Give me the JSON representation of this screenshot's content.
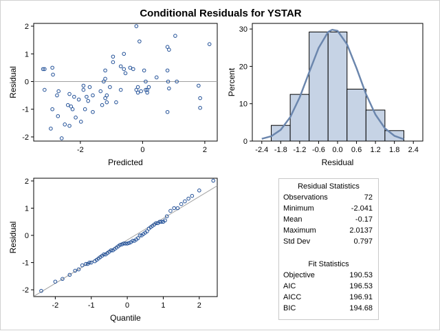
{
  "title": "Conditional Residuals for YSTAR",
  "colors": {
    "marker": "#1f4e96",
    "bar_fill": "#c6d3e5",
    "curve": "#6b86ad",
    "refline": "#a0a0a0",
    "axis": "#000000"
  },
  "chart_data": [
    {
      "type": "scatter",
      "panel": "residual-vs-predicted",
      "xlabel": "Predicted",
      "ylabel": "Residual",
      "xlim": [
        -3.5,
        2.4
      ],
      "ylim": [
        -2.15,
        2.1
      ],
      "xticks": [
        -2,
        0,
        2
      ],
      "yticks": [
        -2,
        -1,
        0,
        1,
        2
      ],
      "xtick_labels": [
        "-2",
        "0",
        "2"
      ],
      "ytick_labels": [
        "-2",
        "-1",
        "0",
        "1",
        "2"
      ],
      "reference_line_y": 0,
      "points": [
        [
          -3.2,
          0.45
        ],
        [
          -3.15,
          0.45
        ],
        [
          -3.15,
          -0.3
        ],
        [
          -2.9,
          0.5
        ],
        [
          -2.88,
          0.25
        ],
        [
          -2.9,
          -1.0
        ],
        [
          -2.95,
          -1.7
        ],
        [
          -2.75,
          -0.5
        ],
        [
          -2.7,
          -0.35
        ],
        [
          -2.72,
          -1.25
        ],
        [
          -2.6,
          -2.05
        ],
        [
          -2.5,
          -1.55
        ],
        [
          -2.4,
          -0.85
        ],
        [
          -2.35,
          -0.45
        ],
        [
          -2.3,
          -0.9
        ],
        [
          -2.35,
          -1.6
        ],
        [
          -2.25,
          -1.0
        ],
        [
          -2.2,
          -0.55
        ],
        [
          -2.15,
          -1.3
        ],
        [
          -2.05,
          -0.65
        ],
        [
          -1.98,
          -1.45
        ],
        [
          -1.9,
          -0.15
        ],
        [
          -1.9,
          -0.3
        ],
        [
          -1.85,
          -1.0
        ],
        [
          -1.8,
          -0.55
        ],
        [
          -1.75,
          -0.7
        ],
        [
          -1.7,
          -0.2
        ],
        [
          -1.6,
          -1.1
        ],
        [
          -1.6,
          -0.5
        ],
        [
          -1.35,
          -0.35
        ],
        [
          -1.3,
          -0.85
        ],
        [
          -1.25,
          0.0
        ],
        [
          -1.2,
          0.4
        ],
        [
          -1.2,
          0.1
        ],
        [
          -1.15,
          -0.5
        ],
        [
          -1.2,
          -0.6
        ],
        [
          -1.15,
          -0.75
        ],
        [
          -1.05,
          -0.2
        ],
        [
          -0.95,
          0.9
        ],
        [
          -0.95,
          0.7
        ],
        [
          -0.85,
          -0.75
        ],
        [
          -0.7,
          0.55
        ],
        [
          -0.7,
          -0.3
        ],
        [
          -0.6,
          1.0
        ],
        [
          -0.6,
          0.45
        ],
        [
          -0.55,
          0.3
        ],
        [
          -0.4,
          0.5
        ],
        [
          -0.3,
          0.45
        ],
        [
          -0.2,
          2.0
        ],
        [
          -0.2,
          -0.3
        ],
        [
          -0.15,
          -0.2
        ],
        [
          -0.15,
          -0.4
        ],
        [
          -0.1,
          1.45
        ],
        [
          -0.05,
          -0.35
        ],
        [
          0.05,
          0.4
        ],
        [
          0.1,
          0.0
        ],
        [
          0.1,
          -0.3
        ],
        [
          0.15,
          -0.3
        ],
        [
          0.15,
          -0.4
        ],
        [
          0.2,
          -0.2
        ],
        [
          0.45,
          0.15
        ],
        [
          0.8,
          1.25
        ],
        [
          0.85,
          1.15
        ],
        [
          0.8,
          0.4
        ],
        [
          0.82,
          0.0
        ],
        [
          0.85,
          -0.25
        ],
        [
          0.8,
          -1.1
        ],
        [
          1.05,
          1.65
        ],
        [
          1.1,
          0.0
        ],
        [
          1.8,
          -0.15
        ],
        [
          1.85,
          -0.6
        ],
        [
          1.85,
          -0.95
        ],
        [
          2.15,
          1.35
        ]
      ]
    },
    {
      "type": "bar",
      "panel": "residual-histogram",
      "xlabel": "Residual",
      "ylabel": "Percent",
      "xlim": [
        -2.7,
        2.7
      ],
      "ylim": [
        0,
        31.5
      ],
      "xticks": [
        -2.4,
        -1.8,
        -1.2,
        -0.6,
        0.0,
        0.6,
        1.2,
        1.8,
        2.4
      ],
      "yticks": [
        0,
        10,
        20,
        30
      ],
      "xtick_labels": [
        "-2.4",
        "-1.8",
        "-1.2",
        "-0.6",
        "0.0",
        "0.6",
        "1.2",
        "1.8",
        "2.4"
      ],
      "ytick_labels": [
        "0",
        "10",
        "20",
        "30"
      ],
      "bin_edges": [
        -2.1,
        -1.5,
        -0.9,
        -0.3,
        0.3,
        0.9,
        1.5,
        2.1
      ],
      "values": [
        4.2,
        12.5,
        29.2,
        29.2,
        13.9,
        8.3,
        2.8
      ],
      "density_curve": {
        "x": [
          -2.4,
          -2.1,
          -1.8,
          -1.5,
          -1.2,
          -0.9,
          -0.6,
          -0.3,
          -0.17,
          0.0,
          0.3,
          0.6,
          0.9,
          1.2,
          1.5,
          1.8,
          2.1
        ],
        "y": [
          0.6,
          1.3,
          3.0,
          6.4,
          11.7,
          18.4,
          24.9,
          29.2,
          29.8,
          29.5,
          25.9,
          19.5,
          12.6,
          7.1,
          3.4,
          1.4,
          0.5
        ]
      }
    },
    {
      "type": "scatter",
      "panel": "residual-qq",
      "xlabel": "Quantile",
      "ylabel": "Residual",
      "xlim": [
        -2.6,
        2.5
      ],
      "ylim": [
        -2.25,
        2.1
      ],
      "xticks": [
        -2,
        -1,
        0,
        1,
        2
      ],
      "yticks": [
        -2,
        -1,
        0,
        1,
        2
      ],
      "xtick_labels": [
        "-2",
        "-1",
        "0",
        "1",
        "2"
      ],
      "ytick_labels": [
        "-2",
        "-1",
        "0",
        "1",
        "2"
      ],
      "reference_line": {
        "intercept": -0.17,
        "slope": 0.797
      },
      "points": [
        [
          -2.39,
          -2.04
        ],
        [
          -2.0,
          -1.7
        ],
        [
          -1.8,
          -1.6
        ],
        [
          -1.6,
          -1.45
        ],
        [
          -1.45,
          -1.3
        ],
        [
          -1.35,
          -1.25
        ],
        [
          -1.25,
          -1.1
        ],
        [
          -1.15,
          -1.05
        ],
        [
          -1.1,
          -1.05
        ],
        [
          -1.05,
          -1.0
        ],
        [
          -1.0,
          -1.0
        ],
        [
          -0.9,
          -0.95
        ],
        [
          -0.85,
          -0.9
        ],
        [
          -0.8,
          -0.85
        ],
        [
          -0.75,
          -0.8
        ],
        [
          -0.7,
          -0.75
        ],
        [
          -0.65,
          -0.7
        ],
        [
          -0.6,
          -0.7
        ],
        [
          -0.55,
          -0.65
        ],
        [
          -0.5,
          -0.6
        ],
        [
          -0.45,
          -0.55
        ],
        [
          -0.4,
          -0.55
        ],
        [
          -0.35,
          -0.5
        ],
        [
          -0.3,
          -0.45
        ],
        [
          -0.25,
          -0.4
        ],
        [
          -0.2,
          -0.35
        ],
        [
          -0.15,
          -0.33
        ],
        [
          -0.1,
          -0.3
        ],
        [
          -0.05,
          -0.3
        ],
        [
          0.0,
          -0.3
        ],
        [
          0.05,
          -0.28
        ],
        [
          0.1,
          -0.25
        ],
        [
          0.15,
          -0.2
        ],
        [
          0.2,
          -0.2
        ],
        [
          0.25,
          -0.15
        ],
        [
          0.3,
          -0.1
        ],
        [
          0.35,
          0.0
        ],
        [
          0.4,
          0.0
        ],
        [
          0.45,
          0.05
        ],
        [
          0.5,
          0.1
        ],
        [
          0.55,
          0.15
        ],
        [
          0.6,
          0.25
        ],
        [
          0.65,
          0.3
        ],
        [
          0.7,
          0.35
        ],
        [
          0.75,
          0.4
        ],
        [
          0.8,
          0.45
        ],
        [
          0.85,
          0.45
        ],
        [
          0.9,
          0.5
        ],
        [
          0.95,
          0.5
        ],
        [
          1.0,
          0.5
        ],
        [
          1.05,
          0.55
        ],
        [
          1.1,
          0.7
        ],
        [
          1.2,
          0.9
        ],
        [
          1.3,
          1.0
        ],
        [
          1.4,
          1.0
        ],
        [
          1.5,
          1.15
        ],
        [
          1.6,
          1.25
        ],
        [
          1.7,
          1.35
        ],
        [
          1.8,
          1.45
        ],
        [
          2.0,
          1.65
        ],
        [
          2.39,
          2.01
        ]
      ]
    }
  ],
  "residual_statistics": {
    "heading": "Residual Statistics",
    "rows": [
      {
        "label": "Observations",
        "value": "72"
      },
      {
        "label": "Minimum",
        "value": "-2.041"
      },
      {
        "label": "Mean",
        "value": "-0.17"
      },
      {
        "label": "Maximum",
        "value": "2.0137"
      },
      {
        "label": "Std Dev",
        "value": "0.797"
      }
    ]
  },
  "fit_statistics": {
    "heading": "Fit Statistics",
    "rows": [
      {
        "label": "Objective",
        "value": "190.53"
      },
      {
        "label": "AIC",
        "value": "196.53"
      },
      {
        "label": "AICC",
        "value": "196.91"
      },
      {
        "label": "BIC",
        "value": "194.68"
      }
    ]
  }
}
